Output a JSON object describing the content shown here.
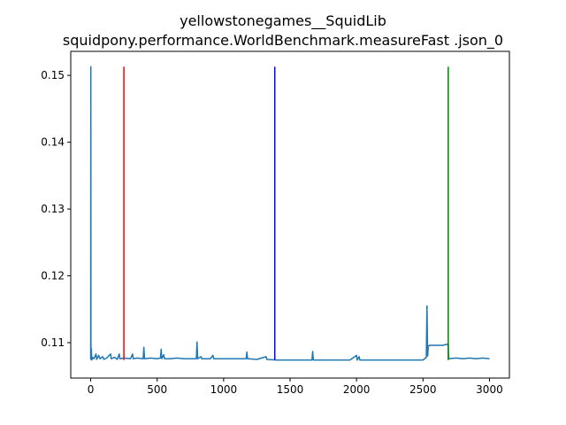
{
  "chart_data": {
    "type": "line",
    "title_lines": [
      "yellowstonegames__SquidLib",
      "squidpony.performance.WorldBenchmark.measureFast .json_0"
    ],
    "xlabel": "",
    "ylabel": "",
    "xlim": [
      -150,
      3150
    ],
    "ylim": [
      0.1047,
      0.1536
    ],
    "x_ticks": [
      0,
      500,
      1000,
      1500,
      2000,
      2500,
      3000
    ],
    "y_ticks": [
      0.11,
      0.12,
      0.13,
      0.14,
      0.15
    ],
    "y_tick_labels": [
      "0.11",
      "0.12",
      "0.13",
      "0.14",
      "0.15"
    ],
    "series_color": "#1f77b4",
    "series": [
      {
        "name": "measurements",
        "points": [
          [
            0,
            0.1075
          ],
          [
            1,
            0.1513
          ],
          [
            2,
            0.1075
          ],
          [
            5,
            0.1091
          ],
          [
            8,
            0.1074
          ],
          [
            15,
            0.1078
          ],
          [
            25,
            0.1076
          ],
          [
            40,
            0.1083
          ],
          [
            45,
            0.1075
          ],
          [
            60,
            0.1081
          ],
          [
            70,
            0.1076
          ],
          [
            90,
            0.1079
          ],
          [
            100,
            0.1075
          ],
          [
            120,
            0.1077
          ],
          [
            150,
            0.1083
          ],
          [
            155,
            0.1076
          ],
          [
            180,
            0.1078
          ],
          [
            200,
            0.1075
          ],
          [
            215,
            0.1083
          ],
          [
            220,
            0.1076
          ],
          [
            250,
            0.1077
          ],
          [
            300,
            0.1076
          ],
          [
            315,
            0.1083
          ],
          [
            320,
            0.1076
          ],
          [
            350,
            0.1077
          ],
          [
            395,
            0.1076
          ],
          [
            400,
            0.1093
          ],
          [
            405,
            0.1076
          ],
          [
            450,
            0.1077
          ],
          [
            500,
            0.1076
          ],
          [
            525,
            0.1077
          ],
          [
            530,
            0.109
          ],
          [
            535,
            0.1076
          ],
          [
            550,
            0.1082
          ],
          [
            555,
            0.1076
          ],
          [
            600,
            0.1076
          ],
          [
            650,
            0.1077
          ],
          [
            700,
            0.1076
          ],
          [
            750,
            0.1076
          ],
          [
            795,
            0.1076
          ],
          [
            800,
            0.1101
          ],
          [
            805,
            0.1076
          ],
          [
            830,
            0.1079
          ],
          [
            835,
            0.1076
          ],
          [
            900,
            0.1076
          ],
          [
            920,
            0.1081
          ],
          [
            925,
            0.1076
          ],
          [
            1000,
            0.1076
          ],
          [
            1050,
            0.1076
          ],
          [
            1100,
            0.1076
          ],
          [
            1170,
            0.1076
          ],
          [
            1175,
            0.1086
          ],
          [
            1180,
            0.1076
          ],
          [
            1250,
            0.1075
          ],
          [
            1320,
            0.1079
          ],
          [
            1325,
            0.1075
          ],
          [
            1400,
            0.1074
          ],
          [
            1500,
            0.1074
          ],
          [
            1600,
            0.1074
          ],
          [
            1665,
            0.1074
          ],
          [
            1670,
            0.1087
          ],
          [
            1675,
            0.1074
          ],
          [
            1750,
            0.1074
          ],
          [
            1850,
            0.1074
          ],
          [
            1950,
            0.1074
          ],
          [
            2000,
            0.1081
          ],
          [
            2005,
            0.1074
          ],
          [
            2020,
            0.1079
          ],
          [
            2025,
            0.1074
          ],
          [
            2100,
            0.1074
          ],
          [
            2200,
            0.1074
          ],
          [
            2300,
            0.1074
          ],
          [
            2400,
            0.1074
          ],
          [
            2500,
            0.1074
          ],
          [
            2525,
            0.1078
          ],
          [
            2530,
            0.1155
          ],
          [
            2535,
            0.108
          ],
          [
            2540,
            0.1095
          ],
          [
            2550,
            0.1096
          ],
          [
            2600,
            0.1096
          ],
          [
            2650,
            0.1096
          ],
          [
            2690,
            0.1098
          ],
          [
            2692,
            0.1076
          ],
          [
            2750,
            0.1077
          ],
          [
            2800,
            0.1076
          ],
          [
            2850,
            0.1077
          ],
          [
            2900,
            0.1076
          ],
          [
            2950,
            0.1077
          ],
          [
            3000,
            0.1076
          ]
        ]
      }
    ],
    "vlines": [
      {
        "name": "red-marker",
        "x": 250,
        "color": "#ff0000",
        "ymin": 0.1074,
        "ymax": 0.1513
      },
      {
        "name": "blue-marker",
        "x": 1385,
        "color": "#0000ff",
        "ymin": 0.1074,
        "ymax": 0.1513
      },
      {
        "name": "green-marker",
        "x": 2690,
        "color": "#008000",
        "ymin": 0.1074,
        "ymax": 0.1513
      }
    ]
  }
}
